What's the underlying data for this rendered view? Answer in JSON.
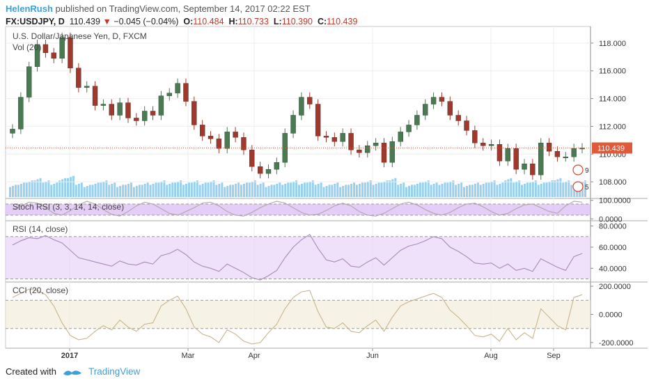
{
  "header": {
    "user": "HelenRush",
    "published_text": " published on TradingView.com, September 14, 2017 02:22 EST",
    "symbol": "FX:USDJPY, D",
    "last": "110.439",
    "arrow": "▼",
    "change": "−0.045 (−0.04%)",
    "o_label": "O:",
    "o_value": "110.484",
    "h_label": "H:",
    "h_value": "110.733",
    "l_label": "L:",
    "l_value": "110.390",
    "c_label": "C:",
    "c_value": "110.439"
  },
  "footer": {
    "created_with": "Created with",
    "brand": "TradingView"
  },
  "colors": {
    "up": "#4a7a52",
    "down": "#a0392b",
    "volume": "#7fc4e8",
    "stoch": "#d9b8f2",
    "rsi": "#e8d4f7",
    "cci": "#f3ecdc",
    "price_line": "#e05a3a",
    "price_tag": "#e05a3a"
  },
  "chart_data": [
    {
      "type": "candlestick",
      "title": "U.S. Dollar/Japanese Yen, D, FXCM",
      "sublabel": "Vol (20)",
      "x_ticks": [
        "2017",
        "Mar",
        "Apr",
        "Jun",
        "Aug",
        "Sep"
      ],
      "y_ticks": [
        "118.000",
        "116.000",
        "114.000",
        "112.000",
        "110.000",
        "108.000"
      ],
      "ylim": [
        106.8,
        119.2
      ],
      "last_price": 110.439,
      "last_price_label": "110.439",
      "events": [
        {
          "label": "9"
        },
        {
          "label": "5"
        }
      ],
      "close_series": [
        111.8,
        114.1,
        116.3,
        117.9,
        117.3,
        116.9,
        118.4,
        116.2,
        114.8,
        114.9,
        113.5,
        113.6,
        112.8,
        113.7,
        112.6,
        112.4,
        113.1,
        112.8,
        114.2,
        114.4,
        115.1,
        113.8,
        112.1,
        111.3,
        111.1,
        110.4,
        111.6,
        111.2,
        110.3,
        109.1,
        108.6,
        108.9,
        109.4,
        111.5,
        112.8,
        114.1,
        113.6,
        111.3,
        111.2,
        110.9,
        111.5,
        110.3,
        110.1,
        110.6,
        110.8,
        109.4,
        110.9,
        111.6,
        112.1,
        112.8,
        113.6,
        114.1,
        113.8,
        112.8,
        112.4,
        111.7,
        110.8,
        110.6,
        110.7,
        109.5,
        110.4,
        108.9,
        109.3,
        108.5,
        110.8,
        110.2,
        109.8,
        109.8,
        110.4,
        110.44
      ],
      "volume_series": [
        0.5,
        0.6,
        0.7,
        0.8,
        0.7,
        0.6,
        0.8,
        0.9,
        0.6,
        0.5,
        0.6,
        0.7,
        0.6,
        0.5,
        0.6,
        0.5,
        0.6,
        0.6,
        0.7,
        0.6,
        0.7,
        0.6,
        0.7,
        0.6,
        0.7,
        0.6,
        0.5,
        0.6,
        0.6,
        0.7,
        0.6,
        0.5,
        0.6,
        0.6,
        0.7,
        0.6,
        0.7,
        0.6,
        0.5,
        0.6,
        0.5,
        0.6,
        0.6,
        0.7,
        0.6,
        0.7,
        0.8,
        0.6,
        0.5,
        0.6,
        0.7,
        0.6,
        0.6,
        0.7,
        0.6,
        0.5,
        0.6,
        0.6,
        0.7,
        0.6,
        0.8,
        0.7,
        0.6,
        0.7,
        0.6,
        0.7,
        0.8,
        0.7,
        0.6,
        0.7
      ]
    },
    {
      "type": "line",
      "title": "Stoch RSI (3, 3, 14, 14, close)",
      "y_ticks": [
        "100.0000",
        "0.0000"
      ],
      "ylim": [
        -10,
        110
      ],
      "band": [
        20,
        80
      ],
      "series": [
        {
          "values": [
            50,
            70,
            90,
            85,
            60,
            30,
            20,
            45,
            75,
            95,
            80,
            50,
            25,
            15,
            40,
            70,
            90,
            80,
            55,
            30,
            20,
            40,
            60,
            85,
            90,
            70,
            40,
            20,
            15,
            35,
            60,
            80,
            95,
            85,
            60,
            35,
            20,
            25,
            45,
            70,
            85,
            70,
            40,
            20,
            15,
            30,
            55,
            80,
            90,
            75,
            50,
            30,
            20,
            35,
            60,
            80,
            85,
            65,
            40,
            20,
            30,
            55,
            75,
            80,
            60,
            40,
            30,
            70,
            95,
            90
          ]
        }
      ]
    },
    {
      "type": "line",
      "title": "RSI (14, close)",
      "y_ticks": [
        "80.0000",
        "60.0000",
        "40.0000"
      ],
      "ylim": [
        27,
        85
      ],
      "band": [
        30,
        70
      ],
      "series": [
        {
          "values": [
            62,
            66,
            69,
            68,
            71,
            67,
            64,
            57,
            50,
            48,
            46,
            44,
            42,
            47,
            44,
            43,
            46,
            44,
            52,
            54,
            58,
            53,
            46,
            42,
            40,
            37,
            44,
            40,
            36,
            31,
            29,
            33,
            38,
            50,
            60,
            67,
            72,
            59,
            48,
            46,
            49,
            42,
            41,
            46,
            50,
            43,
            50,
            57,
            61,
            63,
            66,
            70,
            68,
            60,
            56,
            51,
            45,
            44,
            45,
            40,
            44,
            38,
            40,
            37,
            49,
            45,
            41,
            38,
            51,
            54
          ]
        }
      ]
    },
    {
      "type": "line",
      "title": "CCI (20, close)",
      "y_ticks": [
        "200.0000",
        "0.0000",
        "-200.0000"
      ],
      "ylim": [
        -240,
        230
      ],
      "band": [
        -100,
        100
      ],
      "series": [
        {
          "values": [
            120,
            150,
            180,
            170,
            140,
            60,
            -60,
            -150,
            -180,
            -170,
            -120,
            -80,
            -110,
            -40,
            -90,
            -120,
            -70,
            -60,
            60,
            100,
            130,
            40,
            -90,
            -140,
            -160,
            -200,
            -110,
            -140,
            -190,
            -210,
            -200,
            -130,
            -70,
            40,
            120,
            160,
            170,
            20,
            -90,
            -100,
            -60,
            -120,
            -130,
            -80,
            -40,
            -120,
            -20,
            60,
            90,
            110,
            130,
            150,
            120,
            30,
            -20,
            -80,
            -150,
            -160,
            -140,
            -190,
            -100,
            -180,
            -130,
            -170,
            40,
            -20,
            -80,
            -110,
            120,
            140
          ]
        }
      ]
    }
  ]
}
